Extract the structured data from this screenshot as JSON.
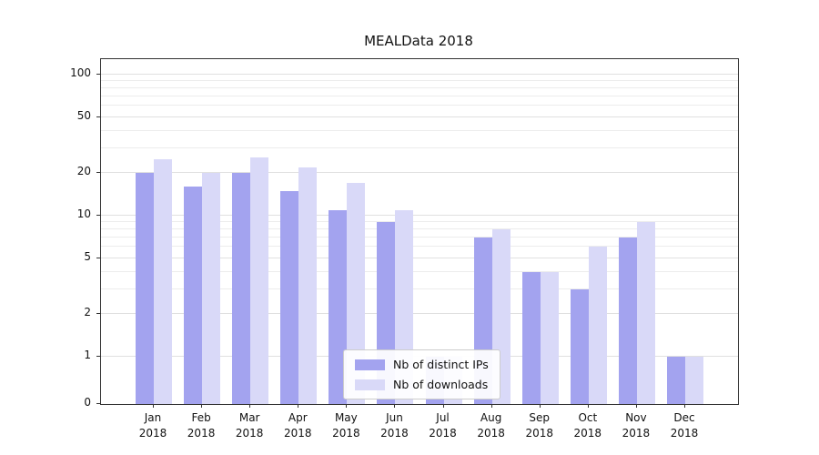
{
  "chart_data": {
    "type": "bar",
    "title": "MEALData 2018",
    "categories": [
      "Jan 2018",
      "Feb 2018",
      "Mar 2018",
      "Apr 2018",
      "May 2018",
      "Jun 2018",
      "Jul 2018",
      "Aug 2018",
      "Sep 2018",
      "Oct 2018",
      "Nov 2018",
      "Dec 2018"
    ],
    "series": [
      {
        "name": "Nb of distinct IPs",
        "color": "#a3a3ef",
        "values": [
          20,
          16,
          20,
          15,
          11,
          9,
          1,
          7,
          4,
          3,
          7,
          1
        ]
      },
      {
        "name": "Nb of downloads",
        "color": "#d9d9f8",
        "values": [
          25,
          20,
          26,
          22,
          17,
          11,
          1,
          8,
          4,
          6,
          9,
          1
        ]
      }
    ],
    "yscale": "symlog",
    "yticks": [
      0,
      1,
      2,
      5,
      10,
      20,
      50,
      100
    ],
    "ylim": [
      0,
      110
    ],
    "xlabel": "",
    "ylabel": "",
    "grid": "horizontal",
    "legend_position": "lower-center-inside"
  }
}
